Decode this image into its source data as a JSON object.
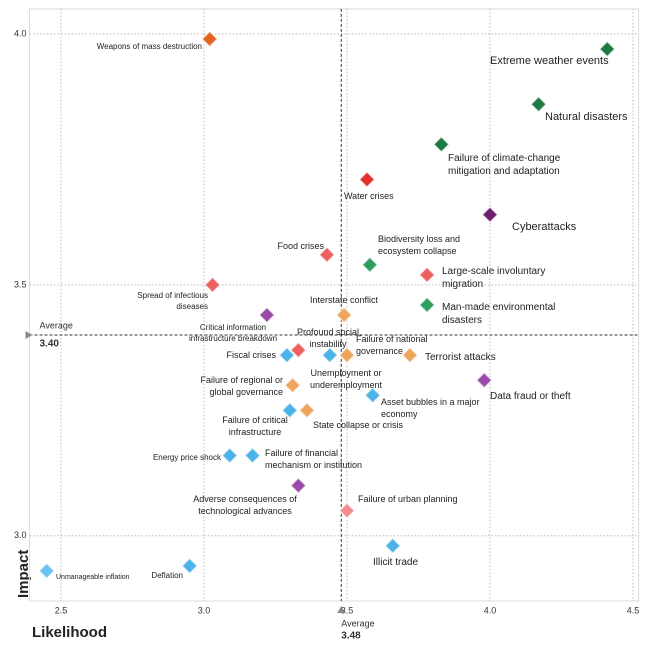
{
  "chart_data": {
    "type": "scatter",
    "x_label": "Likelihood",
    "y_label": "Impact",
    "xlim": [
      2.39,
      4.52
    ],
    "ylim": [
      2.87,
      4.05
    ],
    "xticks": [
      2.5,
      {
        "value": 3.0,
        "label": "3.0"
      },
      3.5,
      {
        "value": 4.0,
        "label": "4.0"
      },
      4.5
    ],
    "yticks": [
      {
        "value": 3.0,
        "label": "3.0"
      },
      3.5,
      {
        "value": 4.0,
        "label": "4.0"
      }
    ],
    "grid": true,
    "x_average": {
      "title": "Average",
      "value": 3.48
    },
    "y_average": {
      "title": "Average",
      "value": 3.4,
      "value_label": "3.40"
    },
    "points": [
      {
        "label": "Weapons of mass destruction",
        "x": 3.02,
        "y": 3.99,
        "color": "#e2661f"
      },
      {
        "label": "Extreme weather events",
        "x": 4.41,
        "y": 3.97,
        "color": "#1d7a45"
      },
      {
        "label": "Natural disasters",
        "x": 4.17,
        "y": 3.86,
        "color": "#1d7a45"
      },
      {
        "label": "Failure of climate-change mitigation and adaptation",
        "x": 3.83,
        "y": 3.78,
        "color": "#1d7a45"
      },
      {
        "label": "Water crises",
        "x": 3.57,
        "y": 3.71,
        "color": "#e0302c"
      },
      {
        "label": "Cyberattacks",
        "x": 4.0,
        "y": 3.64,
        "color": "#6d1f6e"
      },
      {
        "label": "Food crises",
        "x": 3.43,
        "y": 3.56,
        "color": "#ec6060"
      },
      {
        "label": "Biodiversity loss and ecosystem collapse",
        "x": 3.58,
        "y": 3.54,
        "color": "#2e9e5e"
      },
      {
        "label": "Large-scale involuntary migration",
        "x": 3.78,
        "y": 3.52,
        "color": "#ec6060"
      },
      {
        "label": "Spread of infectious diseases",
        "x": 3.03,
        "y": 3.5,
        "color": "#ec6060"
      },
      {
        "label": "Man-made environmental disasters",
        "x": 3.78,
        "y": 3.46,
        "color": "#2e9e5e"
      },
      {
        "label": "Interstate conflict",
        "x": 3.49,
        "y": 3.44,
        "color": "#f0a55e"
      },
      {
        "label": "Critical information infrastructure breakdown",
        "x": 3.22,
        "y": 3.44,
        "color": "#9a4aa8"
      },
      {
        "label": "Profound social instability",
        "x": 3.33,
        "y": 3.37,
        "color": "#ec6060"
      },
      {
        "label": "Unemployment or underemployment",
        "x": 3.44,
        "y": 3.36,
        "color": "#4bb3e8"
      },
      {
        "label": "Failure of national governance",
        "x": 3.5,
        "y": 3.36,
        "color": "#f0a55e"
      },
      {
        "label": "Fiscal crises",
        "x": 3.29,
        "y": 3.36,
        "color": "#4bb3e8"
      },
      {
        "label": "Terrorist attacks",
        "x": 3.72,
        "y": 3.36,
        "color": "#f0a55e"
      },
      {
        "label": "Data fraud or theft",
        "x": 3.98,
        "y": 3.31,
        "color": "#9a4aa8"
      },
      {
        "label": "Failure of regional or global governance",
        "x": 3.31,
        "y": 3.3,
        "color": "#f0a55e"
      },
      {
        "label": "Asset bubbles in a major economy",
        "x": 3.59,
        "y": 3.28,
        "color": "#4bb3e8"
      },
      {
        "label": "Failure of critical infrastructure",
        "x": 3.3,
        "y": 3.25,
        "color": "#4bb3e8"
      },
      {
        "label": "State collapse or crisis",
        "x": 3.36,
        "y": 3.25,
        "color": "#f0a55e"
      },
      {
        "label": "Energy price shock",
        "x": 3.09,
        "y": 3.16,
        "color": "#4bb3e8"
      },
      {
        "label": "Failure of financial mechanism or institution",
        "x": 3.17,
        "y": 3.16,
        "color": "#4bb3e8"
      },
      {
        "label": "Adverse consequences of technological advances",
        "x": 3.33,
        "y": 3.1,
        "color": "#9a4aa8"
      },
      {
        "label": "Failure of urban planning",
        "x": 3.5,
        "y": 3.05,
        "color": "#f28e8e"
      },
      {
        "label": "Illicit trade",
        "x": 3.66,
        "y": 2.98,
        "color": "#4bb3e8"
      },
      {
        "label": "Deflation",
        "x": 2.95,
        "y": 2.94,
        "color": "#4bb3e8"
      },
      {
        "label": "Unmanageable inflation",
        "x": 2.45,
        "y": 2.93,
        "color": "#6cc4ee"
      }
    ]
  }
}
